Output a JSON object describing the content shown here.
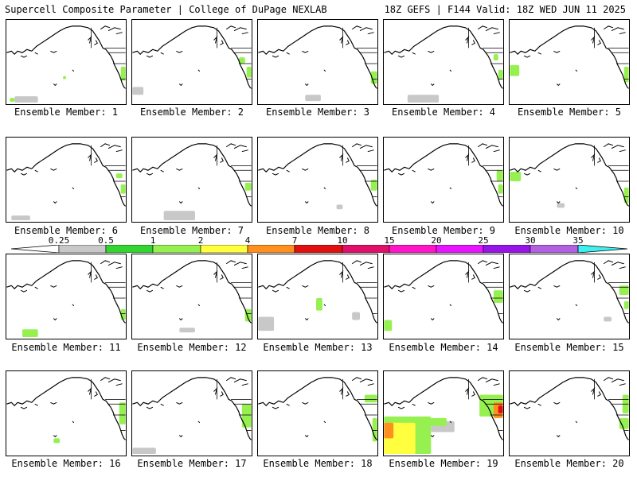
{
  "header": {
    "left": "Supercell Composite Parameter | College of DuPage NEXLAB",
    "right": "18Z GEFS | F144 Valid: 18Z WED JUN 11 2025"
  },
  "colorbar": {
    "labels": [
      "0.25",
      "0.5",
      "1",
      "2",
      "4",
      "7",
      "10",
      "15",
      "20",
      "25",
      "30",
      "35"
    ],
    "colors": [
      "#c8c8c8",
      "#32d532",
      "#96f050",
      "#ffff40",
      "#ff9020",
      "#e01010",
      "#e0106a",
      "#ff14c8",
      "#e614ff",
      "#9614e6",
      "#b060e0",
      "#40f0f0"
    ]
  },
  "panels": [
    {
      "caption": "Ensemble Member: 1"
    },
    {
      "caption": "Ensemble Member: 2"
    },
    {
      "caption": "Ensemble Member: 3"
    },
    {
      "caption": "Ensemble Member: 4"
    },
    {
      "caption": "Ensemble Member: 5"
    },
    {
      "caption": "Ensemble Member: 6"
    },
    {
      "caption": "Ensemble Member: 7"
    },
    {
      "caption": "Ensemble Member: 8"
    },
    {
      "caption": "Ensemble Member: 9"
    },
    {
      "caption": "Ensemble Member: 10"
    },
    {
      "caption": "Ensemble Member: 11"
    },
    {
      "caption": "Ensemble Member: 12"
    },
    {
      "caption": "Ensemble Member: 13"
    },
    {
      "caption": "Ensemble Member: 14"
    },
    {
      "caption": "Ensemble Member: 15"
    },
    {
      "caption": "Ensemble Member: 16"
    },
    {
      "caption": "Ensemble Member: 17"
    },
    {
      "caption": "Ensemble Member: 18"
    },
    {
      "caption": "Ensemble Member: 19"
    },
    {
      "caption": "Ensemble Member: 20"
    }
  ]
}
